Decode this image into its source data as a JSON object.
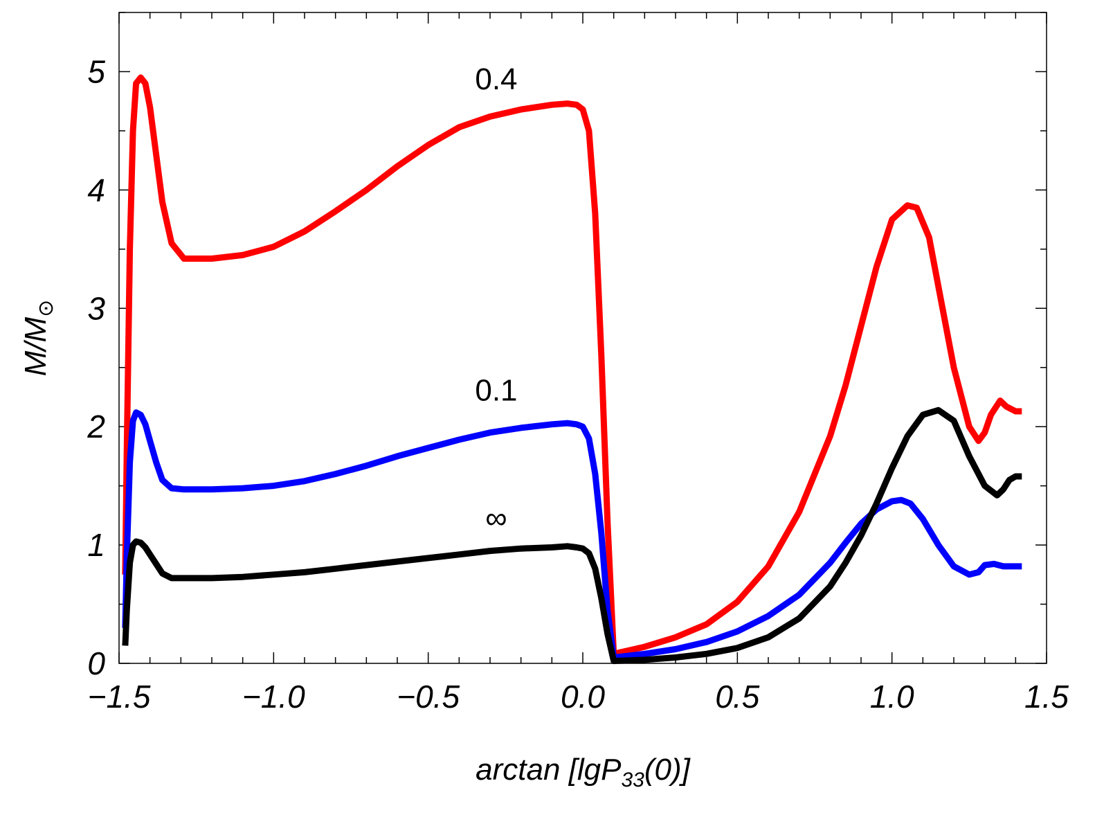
{
  "chart_data": {
    "type": "line",
    "title": "",
    "xlabel": {
      "main": "arctan [lgP",
      "sub": "33",
      "tail": "(0)]"
    },
    "ylabel": {
      "main": "M/M",
      "sub": "⊙"
    },
    "xlim": [
      -1.5,
      1.5
    ],
    "ylim": [
      0,
      5.5
    ],
    "xticks": [
      "−1.5",
      "−1.0",
      "−0.5",
      "0.0",
      "0.5",
      "1.0",
      "1.5"
    ],
    "yticks": [
      "0",
      "1",
      "2",
      "3",
      "4",
      "5"
    ],
    "grid": false,
    "series": [
      {
        "name": "0.4",
        "color": "#ff0000",
        "x": [
          -1.48,
          -1.475,
          -1.465,
          -1.455,
          -1.445,
          -1.43,
          -1.415,
          -1.4,
          -1.38,
          -1.36,
          -1.33,
          -1.29,
          -1.2,
          -1.1,
          -1.0,
          -0.9,
          -0.8,
          -0.7,
          -0.6,
          -0.5,
          -0.4,
          -0.3,
          -0.2,
          -0.1,
          -0.05,
          -0.02,
          0.0,
          0.02,
          0.04,
          0.06,
          0.08,
          0.1,
          0.2,
          0.3,
          0.4,
          0.5,
          0.6,
          0.7,
          0.8,
          0.85,
          0.9,
          0.95,
          1.0,
          1.05,
          1.08,
          1.12,
          1.16,
          1.2,
          1.25,
          1.28,
          1.3,
          1.32,
          1.35,
          1.37,
          1.4,
          1.42
        ],
        "y": [
          0.75,
          1.8,
          3.5,
          4.5,
          4.9,
          4.95,
          4.9,
          4.7,
          4.3,
          3.9,
          3.55,
          3.42,
          3.42,
          3.45,
          3.52,
          3.65,
          3.82,
          4.0,
          4.2,
          4.38,
          4.53,
          4.62,
          4.68,
          4.72,
          4.73,
          4.72,
          4.68,
          4.5,
          3.8,
          2.6,
          1.2,
          0.08,
          0.14,
          0.22,
          0.33,
          0.52,
          0.82,
          1.28,
          1.92,
          2.35,
          2.85,
          3.35,
          3.75,
          3.87,
          3.85,
          3.6,
          3.05,
          2.5,
          2.0,
          1.88,
          1.95,
          2.1,
          2.22,
          2.17,
          2.13,
          2.13
        ]
      },
      {
        "name": "0.1",
        "color": "#0000ff",
        "x": [
          -1.48,
          -1.475,
          -1.465,
          -1.455,
          -1.445,
          -1.43,
          -1.415,
          -1.4,
          -1.38,
          -1.36,
          -1.33,
          -1.29,
          -1.2,
          -1.1,
          -1.0,
          -0.9,
          -0.8,
          -0.7,
          -0.6,
          -0.5,
          -0.4,
          -0.3,
          -0.2,
          -0.1,
          -0.05,
          -0.02,
          0.0,
          0.02,
          0.04,
          0.06,
          0.08,
          0.1,
          0.2,
          0.3,
          0.4,
          0.5,
          0.6,
          0.7,
          0.8,
          0.85,
          0.9,
          0.95,
          1.0,
          1.03,
          1.06,
          1.1,
          1.15,
          1.2,
          1.25,
          1.28,
          1.3,
          1.33,
          1.36,
          1.4,
          1.42
        ],
        "y": [
          0.3,
          0.9,
          1.7,
          2.05,
          2.12,
          2.1,
          2.02,
          1.88,
          1.7,
          1.55,
          1.48,
          1.47,
          1.47,
          1.48,
          1.5,
          1.54,
          1.6,
          1.67,
          1.75,
          1.82,
          1.89,
          1.95,
          1.99,
          2.02,
          2.03,
          2.02,
          2.0,
          1.9,
          1.6,
          1.1,
          0.45,
          0.05,
          0.08,
          0.12,
          0.18,
          0.27,
          0.4,
          0.58,
          0.85,
          1.02,
          1.18,
          1.3,
          1.37,
          1.38,
          1.35,
          1.22,
          1.0,
          0.82,
          0.75,
          0.77,
          0.83,
          0.84,
          0.82,
          0.82,
          0.82
        ]
      },
      {
        "name": "∞",
        "color": "#000000",
        "x": [
          -1.48,
          -1.475,
          -1.465,
          -1.455,
          -1.445,
          -1.43,
          -1.415,
          -1.4,
          -1.38,
          -1.36,
          -1.33,
          -1.29,
          -1.2,
          -1.1,
          -1.0,
          -0.9,
          -0.8,
          -0.7,
          -0.6,
          -0.5,
          -0.4,
          -0.3,
          -0.2,
          -0.1,
          -0.05,
          -0.02,
          0.0,
          0.02,
          0.04,
          0.06,
          0.08,
          0.1,
          0.2,
          0.3,
          0.4,
          0.5,
          0.6,
          0.7,
          0.8,
          0.85,
          0.9,
          0.95,
          1.0,
          1.05,
          1.1,
          1.15,
          1.2,
          1.25,
          1.3,
          1.34,
          1.36,
          1.38,
          1.4,
          1.42
        ],
        "y": [
          0.15,
          0.45,
          0.85,
          1.0,
          1.03,
          1.02,
          0.98,
          0.92,
          0.84,
          0.76,
          0.72,
          0.72,
          0.72,
          0.73,
          0.75,
          0.77,
          0.8,
          0.83,
          0.86,
          0.89,
          0.92,
          0.95,
          0.97,
          0.98,
          0.99,
          0.98,
          0.97,
          0.93,
          0.8,
          0.55,
          0.25,
          0.02,
          0.03,
          0.05,
          0.08,
          0.13,
          0.22,
          0.38,
          0.65,
          0.85,
          1.08,
          1.35,
          1.65,
          1.92,
          2.1,
          2.14,
          2.05,
          1.75,
          1.5,
          1.42,
          1.47,
          1.55,
          1.58,
          1.58
        ]
      }
    ],
    "annotations": [
      {
        "text": "0.4",
        "series": "0.4",
        "x": -0.28,
        "y": 4.85
      },
      {
        "text": "0.1",
        "series": "0.1",
        "x": -0.28,
        "y": 2.22
      },
      {
        "text": "∞",
        "series": "∞",
        "x": -0.28,
        "y": 1.14
      }
    ]
  }
}
